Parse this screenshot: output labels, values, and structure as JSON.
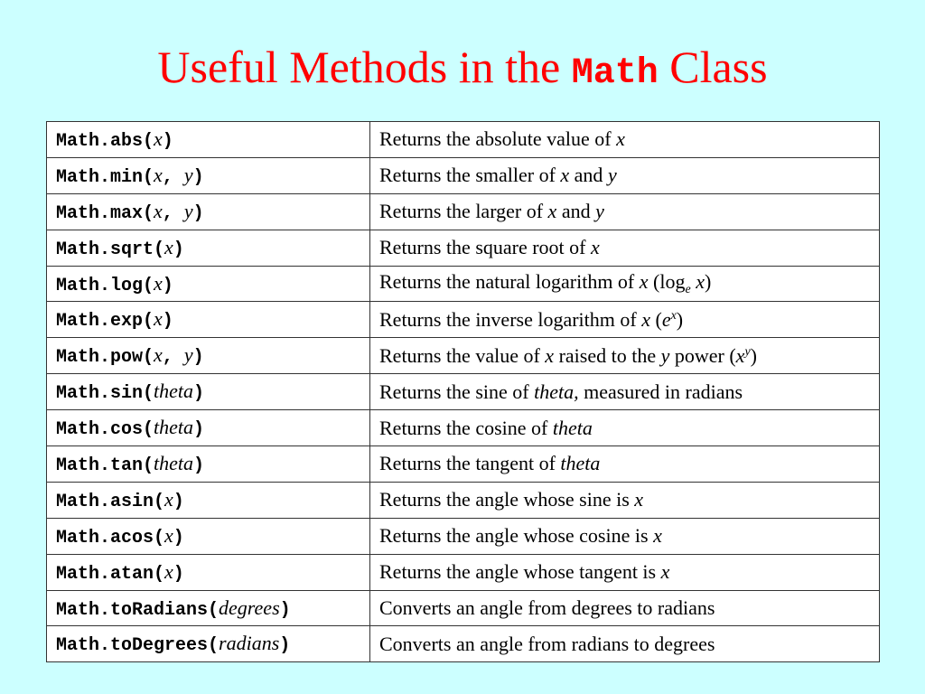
{
  "title": {
    "prefix": "Useful Methods in the ",
    "code": "Math",
    "suffix": " Class"
  },
  "colors": {
    "background": "#ccffff",
    "title": "#ff0000"
  },
  "rows": [
    {
      "method": [
        [
          "Math.abs(",
          "c"
        ],
        [
          "x",
          "i"
        ],
        [
          ")",
          "c"
        ]
      ],
      "description": [
        [
          "Returns the absolute value of ",
          "r"
        ],
        [
          "x",
          "i"
        ]
      ]
    },
    {
      "method": [
        [
          "Math.min(",
          "c"
        ],
        [
          "x",
          "i"
        ],
        [
          ", ",
          "c"
        ],
        [
          "y",
          "i"
        ],
        [
          ")",
          "c"
        ]
      ],
      "description": [
        [
          "Returns the smaller of ",
          "r"
        ],
        [
          "x",
          "i"
        ],
        [
          " and ",
          "r"
        ],
        [
          "y",
          "i"
        ]
      ]
    },
    {
      "method": [
        [
          "Math.max(",
          "c"
        ],
        [
          "x",
          "i"
        ],
        [
          ", ",
          "c"
        ],
        [
          "y",
          "i"
        ],
        [
          ")",
          "c"
        ]
      ],
      "description": [
        [
          "Returns the larger of ",
          "r"
        ],
        [
          "x",
          "i"
        ],
        [
          " and ",
          "r"
        ],
        [
          "y",
          "i"
        ]
      ]
    },
    {
      "method": [
        [
          "Math.sqrt(",
          "c"
        ],
        [
          "x",
          "i"
        ],
        [
          ")",
          "c"
        ]
      ],
      "description": [
        [
          "Returns the square root of ",
          "r"
        ],
        [
          "x",
          "i"
        ]
      ]
    },
    {
      "method": [
        [
          "Math.log(",
          "c"
        ],
        [
          "x",
          "i"
        ],
        [
          ")",
          "c"
        ]
      ],
      "description": [
        [
          "Returns the natural logarithm of ",
          "r"
        ],
        [
          "x",
          "i"
        ],
        [
          " (log",
          "r"
        ],
        [
          "e",
          "sub"
        ],
        [
          " ",
          "r"
        ],
        [
          "x",
          "i"
        ],
        [
          ")",
          "r"
        ]
      ]
    },
    {
      "method": [
        [
          "Math.exp(",
          "c"
        ],
        [
          "x",
          "i"
        ],
        [
          ")",
          "c"
        ]
      ],
      "description": [
        [
          "Returns the inverse logarithm of ",
          "r"
        ],
        [
          "x",
          "i"
        ],
        [
          " (",
          "r"
        ],
        [
          "e",
          "i"
        ],
        [
          "x",
          "sup"
        ],
        [
          ")",
          "r"
        ]
      ]
    },
    {
      "method": [
        [
          "Math.pow(",
          "c"
        ],
        [
          "x",
          "i"
        ],
        [
          ", ",
          "c"
        ],
        [
          "y",
          "i"
        ],
        [
          ")",
          "c"
        ]
      ],
      "description": [
        [
          "Returns the value of ",
          "r"
        ],
        [
          "x",
          "i"
        ],
        [
          " raised to the ",
          "r"
        ],
        [
          "y",
          "i"
        ],
        [
          " power (",
          "r"
        ],
        [
          "x",
          "i"
        ],
        [
          "y",
          "sup"
        ],
        [
          ")",
          "r"
        ]
      ]
    },
    {
      "method": [
        [
          "Math.sin(",
          "c"
        ],
        [
          "theta",
          "i"
        ],
        [
          ")",
          "c"
        ]
      ],
      "description": [
        [
          "Returns the sine of ",
          "r"
        ],
        [
          "theta,",
          "i"
        ],
        [
          " measured in radians",
          "r"
        ]
      ]
    },
    {
      "method": [
        [
          "Math.cos(",
          "c"
        ],
        [
          "theta",
          "i"
        ],
        [
          ")",
          "c"
        ]
      ],
      "description": [
        [
          "Returns the cosine of ",
          "r"
        ],
        [
          "theta",
          "i"
        ]
      ]
    },
    {
      "method": [
        [
          "Math.tan(",
          "c"
        ],
        [
          "theta",
          "i"
        ],
        [
          ")",
          "c"
        ]
      ],
      "description": [
        [
          "Returns the tangent of ",
          "r"
        ],
        [
          "theta",
          "i"
        ]
      ]
    },
    {
      "method": [
        [
          "Math.asin(",
          "c"
        ],
        [
          "x",
          "i"
        ],
        [
          ")",
          "c"
        ]
      ],
      "description": [
        [
          "Returns the angle whose sine is ",
          "r"
        ],
        [
          "x",
          "i"
        ]
      ]
    },
    {
      "method": [
        [
          "Math.acos(",
          "c"
        ],
        [
          "x",
          "i"
        ],
        [
          ")",
          "c"
        ]
      ],
      "description": [
        [
          "Returns the angle whose cosine is ",
          "r"
        ],
        [
          "x",
          "i"
        ]
      ]
    },
    {
      "method": [
        [
          "Math.atan(",
          "c"
        ],
        [
          "x",
          "i"
        ],
        [
          ")",
          "c"
        ]
      ],
      "description": [
        [
          "Returns the angle whose tangent is ",
          "r"
        ],
        [
          "x",
          "i"
        ]
      ]
    },
    {
      "method": [
        [
          "Math.toRadians(",
          "c"
        ],
        [
          "degrees",
          "i"
        ],
        [
          ")",
          "c"
        ]
      ],
      "description": [
        [
          "Converts an angle from degrees to radians",
          "r"
        ]
      ]
    },
    {
      "method": [
        [
          "Math.toDegrees(",
          "c"
        ],
        [
          "radians",
          "i"
        ],
        [
          ")",
          "c"
        ]
      ],
      "description": [
        [
          "Converts an angle from radians to degrees",
          "r"
        ]
      ]
    }
  ]
}
